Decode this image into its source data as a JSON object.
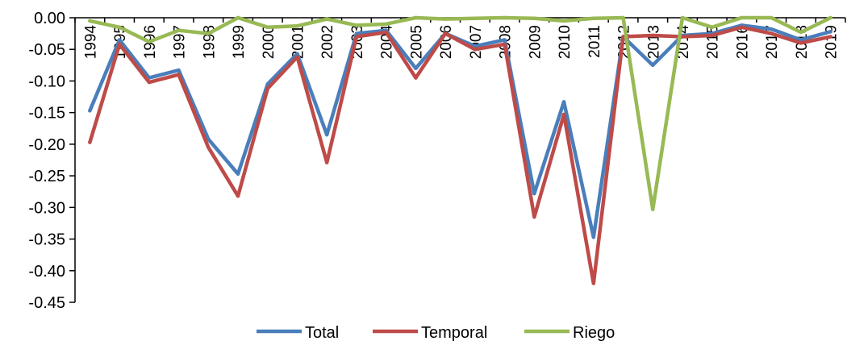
{
  "chart_data": {
    "type": "line",
    "title": "",
    "xlabel": "",
    "ylabel": "",
    "categories": [
      "1994",
      "1995",
      "1996",
      "1997",
      "1998",
      "1999",
      "2000",
      "2001",
      "2002",
      "2003",
      "2004",
      "2005",
      "2006",
      "2007",
      "2008",
      "2009",
      "2010",
      "2011",
      "2012",
      "2013",
      "2014",
      "2015",
      "2016",
      "2017",
      "2018",
      "2019"
    ],
    "ylim": [
      -0.45,
      0.0
    ],
    "yticks": [
      0.0,
      -0.05,
      -0.1,
      -0.15,
      -0.2,
      -0.25,
      -0.3,
      -0.35,
      -0.4,
      -0.45
    ],
    "ytick_labels": [
      "0.00",
      "-0.05",
      "-0.10",
      "-0.15",
      "-0.20",
      "-0.25",
      "-0.30",
      "-0.35",
      "-0.40",
      "-0.45"
    ],
    "grid": false,
    "legend_position": "bottom",
    "series": [
      {
        "name": "Total",
        "color": "#4a7ebb",
        "values": [
          -0.147,
          -0.035,
          -0.095,
          -0.083,
          -0.192,
          -0.247,
          -0.105,
          -0.057,
          -0.185,
          -0.025,
          -0.02,
          -0.08,
          -0.025,
          -0.045,
          -0.035,
          -0.278,
          -0.133,
          -0.347,
          -0.03,
          -0.075,
          -0.028,
          -0.025,
          -0.012,
          -0.018,
          -0.035,
          -0.022
        ]
      },
      {
        "name": "Temporal",
        "color": "#be4b48",
        "values": [
          -0.197,
          -0.042,
          -0.102,
          -0.09,
          -0.205,
          -0.282,
          -0.112,
          -0.062,
          -0.229,
          -0.03,
          -0.023,
          -0.095,
          -0.025,
          -0.05,
          -0.042,
          -0.315,
          -0.153,
          -0.42,
          -0.03,
          -0.028,
          -0.03,
          -0.028,
          -0.015,
          -0.025,
          -0.04,
          -0.03
        ]
      },
      {
        "name": "Riego",
        "color": "#98b954",
        "values": [
          -0.005,
          -0.015,
          -0.038,
          -0.02,
          -0.025,
          0.0,
          -0.015,
          -0.013,
          -0.002,
          -0.012,
          -0.01,
          0.0,
          -0.002,
          -0.001,
          0.0,
          -0.001,
          -0.005,
          -0.001,
          0.0,
          -0.303,
          0.0,
          -0.015,
          0.0,
          0.0,
          -0.023,
          0.0
        ]
      }
    ]
  }
}
